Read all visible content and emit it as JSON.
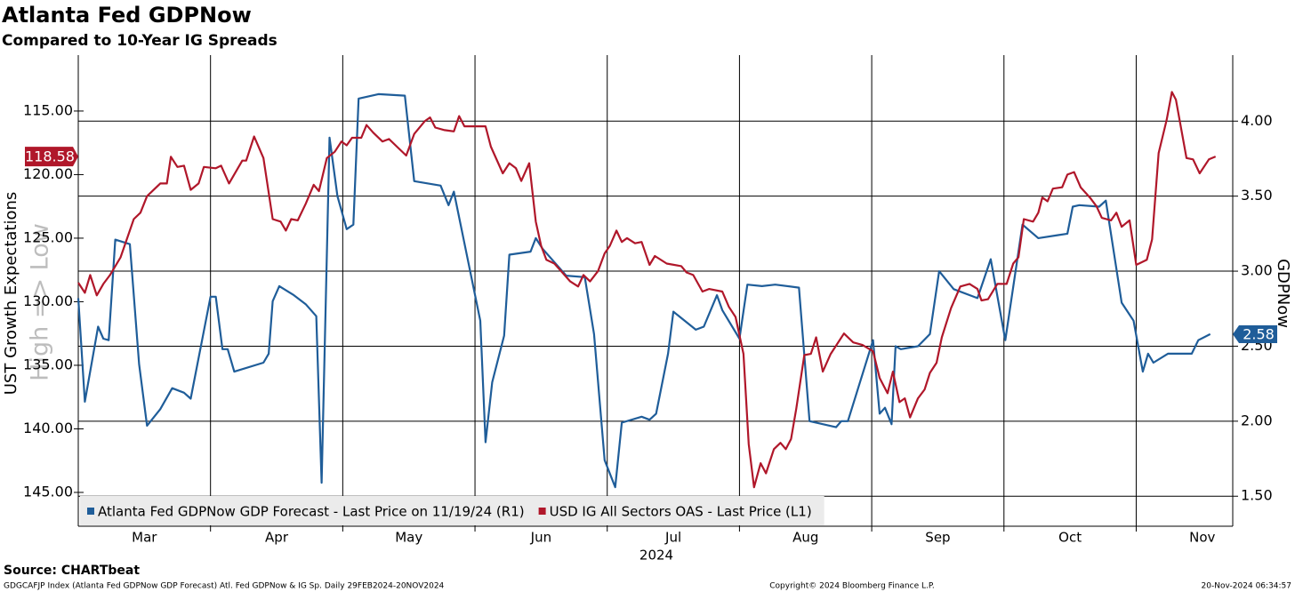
{
  "chart_data": {
    "type": "line",
    "title": "Atlanta Fed GDPNow",
    "subtitle": "Compared to 10-Year IG Spreads",
    "ylabel": "UST Growth Expectations",
    "y2label": "GDPNow",
    "watermark": "High => Low",
    "xlabel": "2024",
    "xlim": [
      3,
      11.73
    ],
    "xticks": [
      {
        "value": 3.5,
        "label": "Mar"
      },
      {
        "value": 4.5,
        "label": "Apr"
      },
      {
        "value": 5.5,
        "label": "May"
      },
      {
        "value": 6.5,
        "label": "Jun"
      },
      {
        "value": 7.5,
        "label": "Jul"
      },
      {
        "value": 8.5,
        "label": "Aug"
      },
      {
        "value": 9.5,
        "label": "Sep"
      },
      {
        "value": 10.5,
        "label": "Oct"
      },
      {
        "value": 11.5,
        "label": "Nov"
      }
    ],
    "xgrid": [
      4,
      5,
      6,
      7,
      8,
      9,
      10,
      11
    ],
    "ylim": [
      110.6,
      147.66
    ],
    "y_inverted": true,
    "yticks": [
      {
        "value": 115,
        "label": "115.00"
      },
      {
        "value": 120,
        "label": "120.00"
      },
      {
        "value": 125,
        "label": "125.00"
      },
      {
        "value": 130,
        "label": "130.00"
      },
      {
        "value": 135,
        "label": "135.00"
      },
      {
        "value": 140,
        "label": "140.00"
      },
      {
        "value": 145,
        "label": "145.00"
      }
    ],
    "y2lim": [
      1.3,
      4.44
    ],
    "y2ticks": [
      {
        "value": 1.5,
        "label": "1.50"
      },
      {
        "value": 2,
        "label": "2.00"
      },
      {
        "value": 2.5,
        "label": "2.50"
      },
      {
        "value": 3,
        "label": "3.00"
      },
      {
        "value": 3.5,
        "label": "3.50"
      },
      {
        "value": 4,
        "label": "4.00"
      }
    ],
    "grid": true,
    "legend": "lower left",
    "series": [
      {
        "name": "Atlanta Fed GDPNow GDP Forecast - Last Price on 11/19/24 (R1)",
        "color": "#1f5d99",
        "axis": "y2",
        "x": [
          3.0,
          3.05,
          3.15,
          3.19,
          3.23,
          3.28,
          3.39,
          3.46,
          3.52,
          3.62,
          3.71,
          3.8,
          3.85,
          4.0,
          4.04,
          4.09,
          4.13,
          4.18,
          4.4,
          4.44,
          4.47,
          4.52,
          4.63,
          4.72,
          4.8,
          4.84,
          4.9,
          4.96,
          5.03,
          5.08,
          5.12,
          5.27,
          5.47,
          5.54,
          5.74,
          5.8,
          5.84,
          6.04,
          6.08,
          6.13,
          6.22,
          6.26,
          6.42,
          6.46,
          6.51,
          6.69,
          6.83,
          6.9,
          6.98,
          7.06,
          7.11,
          7.26,
          7.32,
          7.37,
          7.46,
          7.5,
          7.67,
          7.73,
          7.83,
          7.87,
          8.0,
          8.06,
          8.17,
          8.27,
          8.45,
          8.53,
          8.73,
          8.77,
          8.82,
          9.01,
          9.06,
          9.1,
          9.15,
          9.18,
          9.22,
          9.35,
          9.44,
          9.51,
          9.62,
          9.8,
          9.9,
          10.01,
          10.14,
          10.26,
          10.41,
          10.48,
          10.52,
          10.57,
          10.72,
          10.77,
          10.89,
          10.98,
          11.05,
          11.09,
          11.13,
          11.24,
          11.42,
          11.47,
          11.56
        ],
        "values": [
          2.82,
          2.13,
          2.63,
          2.55,
          2.54,
          3.21,
          3.18,
          2.38,
          1.97,
          2.08,
          2.22,
          2.19,
          2.15,
          2.83,
          2.83,
          2.48,
          2.48,
          2.33,
          2.39,
          2.45,
          2.8,
          2.9,
          2.84,
          2.78,
          2.7,
          1.59,
          3.89,
          3.5,
          3.28,
          3.31,
          4.15,
          4.18,
          4.17,
          3.6,
          3.57,
          3.44,
          3.53,
          2.67,
          1.86,
          2.26,
          2.57,
          3.11,
          3.13,
          3.22,
          3.15,
          2.97,
          2.96,
          2.58,
          1.74,
          1.56,
          1.99,
          2.03,
          2.01,
          2.05,
          2.45,
          2.73,
          2.61,
          2.63,
          2.84,
          2.74,
          2.55,
          2.91,
          2.9,
          2.91,
          2.89,
          2.0,
          1.96,
          2.0,
          2.0,
          2.54,
          2.05,
          2.09,
          1.98,
          2.5,
          2.48,
          2.5,
          2.58,
          3.0,
          2.88,
          2.82,
          3.08,
          2.54,
          3.31,
          3.22,
          3.24,
          3.25,
          3.43,
          3.44,
          3.43,
          3.47,
          2.79,
          2.67,
          2.33,
          2.45,
          2.39,
          2.45,
          2.45,
          2.54,
          2.58
        ]
      },
      {
        "name": "USD IG All Sectors OAS - Last Price (L1)",
        "color": "#b0172a",
        "axis": "y",
        "x": [
          3.0,
          3.05,
          3.09,
          3.14,
          3.19,
          3.24,
          3.32,
          3.42,
          3.47,
          3.52,
          3.62,
          3.67,
          3.7,
          3.75,
          3.8,
          3.85,
          3.91,
          3.95,
          4.04,
          4.08,
          4.14,
          4.24,
          4.27,
          4.33,
          4.4,
          4.47,
          4.53,
          4.57,
          4.61,
          4.66,
          4.72,
          4.78,
          4.82,
          4.88,
          4.94,
          4.99,
          5.03,
          5.07,
          5.14,
          5.18,
          5.23,
          5.3,
          5.35,
          5.41,
          5.48,
          5.54,
          5.62,
          5.66,
          5.7,
          5.77,
          5.84,
          5.88,
          5.92,
          6.08,
          6.12,
          6.21,
          6.26,
          6.31,
          6.35,
          6.41,
          6.46,
          6.5,
          6.54,
          6.6,
          6.66,
          6.72,
          6.78,
          6.82,
          6.87,
          6.93,
          6.98,
          7.02,
          7.07,
          7.11,
          7.15,
          7.21,
          7.26,
          7.32,
          7.36,
          7.45,
          7.56,
          7.6,
          7.65,
          7.72,
          7.77,
          7.87,
          7.92,
          7.97,
          8.03,
          8.07,
          8.11,
          8.16,
          8.2,
          8.26,
          8.31,
          8.35,
          8.39,
          8.43,
          8.49,
          8.54,
          8.58,
          8.63,
          8.69,
          8.79,
          8.86,
          8.93,
          9.01,
          9.06,
          9.12,
          9.16,
          9.21,
          9.25,
          9.29,
          9.35,
          9.4,
          9.44,
          9.49,
          9.53,
          9.6,
          9.67,
          9.74,
          9.8,
          9.83,
          9.88,
          9.95,
          10.02,
          10.07,
          10.11,
          10.15,
          10.22,
          10.26,
          10.29,
          10.33,
          10.37,
          10.44,
          10.48,
          10.53,
          10.58,
          10.65,
          10.7,
          10.74,
          10.81,
          10.85,
          10.89,
          10.95,
          11.0,
          11.08,
          11.12,
          11.17,
          11.23,
          11.27,
          11.3,
          11.38,
          11.43,
          11.48,
          11.55,
          11.6
        ],
        "values": [
          128.5,
          129.3,
          127.9,
          129.5,
          128.6,
          127.9,
          126.5,
          123.5,
          123.0,
          121.7,
          120.7,
          120.7,
          118.6,
          119.4,
          119.3,
          121.2,
          120.7,
          119.4,
          119.5,
          119.3,
          120.7,
          118.9,
          118.9,
          117.0,
          118.7,
          123.5,
          123.7,
          124.4,
          123.5,
          123.6,
          122.3,
          120.8,
          121.3,
          118.7,
          118.2,
          117.4,
          117.7,
          117.1,
          117.1,
          116.1,
          116.7,
          117.4,
          117.2,
          117.8,
          118.5,
          116.8,
          115.8,
          115.5,
          116.3,
          116.5,
          116.6,
          115.4,
          116.2,
          116.2,
          117.8,
          119.9,
          119.1,
          119.5,
          120.5,
          119.1,
          123.7,
          125.6,
          126.7,
          127.0,
          127.7,
          128.4,
          128.8,
          127.9,
          128.4,
          127.6,
          126.2,
          125.6,
          124.4,
          125.3,
          125.0,
          125.4,
          125.3,
          127.1,
          126.4,
          127.0,
          127.2,
          127.7,
          127.9,
          129.2,
          129.0,
          129.2,
          130.4,
          131.2,
          134.1,
          141.2,
          144.6,
          142.7,
          143.5,
          141.6,
          141.1,
          141.6,
          140.8,
          138.4,
          134.2,
          134.1,
          132.8,
          135.5,
          134.1,
          132.5,
          133.2,
          133.4,
          133.9,
          136.0,
          137.2,
          135.5,
          137.9,
          137.6,
          139.1,
          137.6,
          136.9,
          135.6,
          134.8,
          132.8,
          130.5,
          128.8,
          128.6,
          129.0,
          129.9,
          129.8,
          128.6,
          128.6,
          127.0,
          126.5,
          123.5,
          123.7,
          123.0,
          121.8,
          122.1,
          121.1,
          121.0,
          120.0,
          119.8,
          121.0,
          121.8,
          122.5,
          123.4,
          123.6,
          123.0,
          124.1,
          123.6,
          127.1,
          126.7,
          125.1,
          118.3,
          115.7,
          113.5,
          114.1,
          118.7,
          118.8,
          119.9,
          118.8,
          118.58
        ]
      }
    ]
  },
  "footer": {
    "source": "Source: CHARTbeat",
    "index_note": "GDGCAFJP Index (Atlanta Fed GDPNow GDP Forecast) Atl. Fed GDPNow & IG Sp.  Daily 29FEB2024-20NOV2024",
    "copyright": "Copyright© 2024 Bloomberg Finance L.P.",
    "timestamp": "20-Nov-2024 06:34:57"
  }
}
